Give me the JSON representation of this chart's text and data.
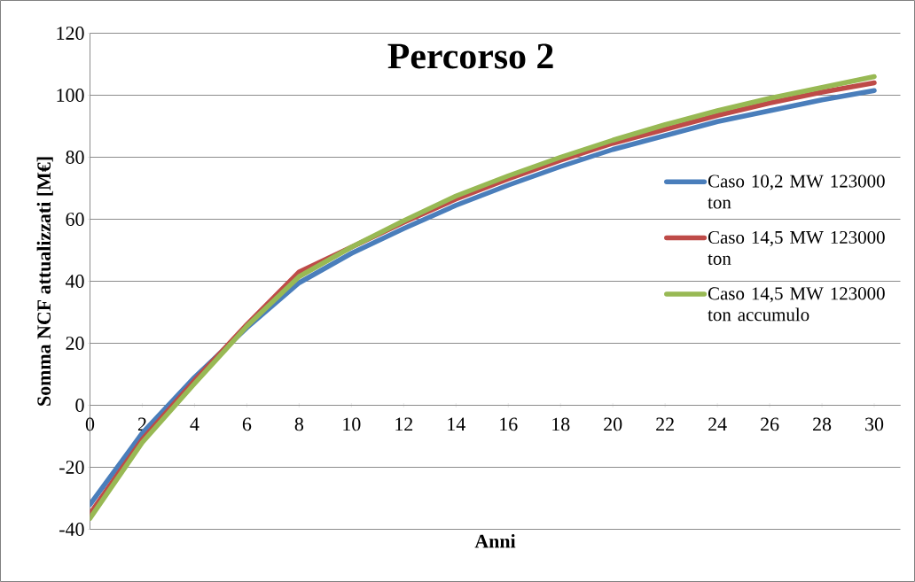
{
  "chart_data": {
    "type": "line",
    "title": "Percorso 2",
    "xlabel": "Anni",
    "ylabel": "Somma NCF attualizzati [M€]",
    "x": [
      0,
      2,
      4,
      6,
      8,
      10,
      12,
      14,
      16,
      18,
      20,
      22,
      24,
      26,
      28,
      30
    ],
    "series": [
      {
        "name": "Caso 10,2 MW 123000 ton",
        "color": "#4a7ebb",
        "values": [
          -32,
          -9,
          9,
          25,
          39.5,
          49,
          57,
          64.5,
          71,
          77,
          82.5,
          87,
          91.5,
          95,
          98.5,
          101.5
        ]
      },
      {
        "name": "Caso 14,5 MW 123000 ton",
        "color": "#be4b48",
        "values": [
          -35,
          -11,
          8,
          26,
          43,
          51,
          59,
          66.5,
          73,
          79,
          84.5,
          89,
          93.5,
          97.5,
          101,
          104
        ]
      },
      {
        "name": "Caso 14,5 MW 123000 ton accumulo",
        "color": "#98b954",
        "values": [
          -36.5,
          -12,
          7,
          25.5,
          41.5,
          51,
          59.5,
          67.5,
          74,
          80,
          85.5,
          90.5,
          95,
          99,
          102.5,
          106
        ]
      }
    ],
    "xlim": [
      0,
      31
    ],
    "ylim": [
      -40,
      120
    ],
    "xticks": [
      0,
      2,
      4,
      6,
      8,
      10,
      12,
      14,
      16,
      18,
      20,
      22,
      24,
      26,
      28,
      30
    ],
    "yticks": [
      -40,
      -20,
      0,
      20,
      40,
      60,
      80,
      100,
      120
    ],
    "grid": "y",
    "legend": "right",
    "marker": "none",
    "line_style": "solid"
  }
}
